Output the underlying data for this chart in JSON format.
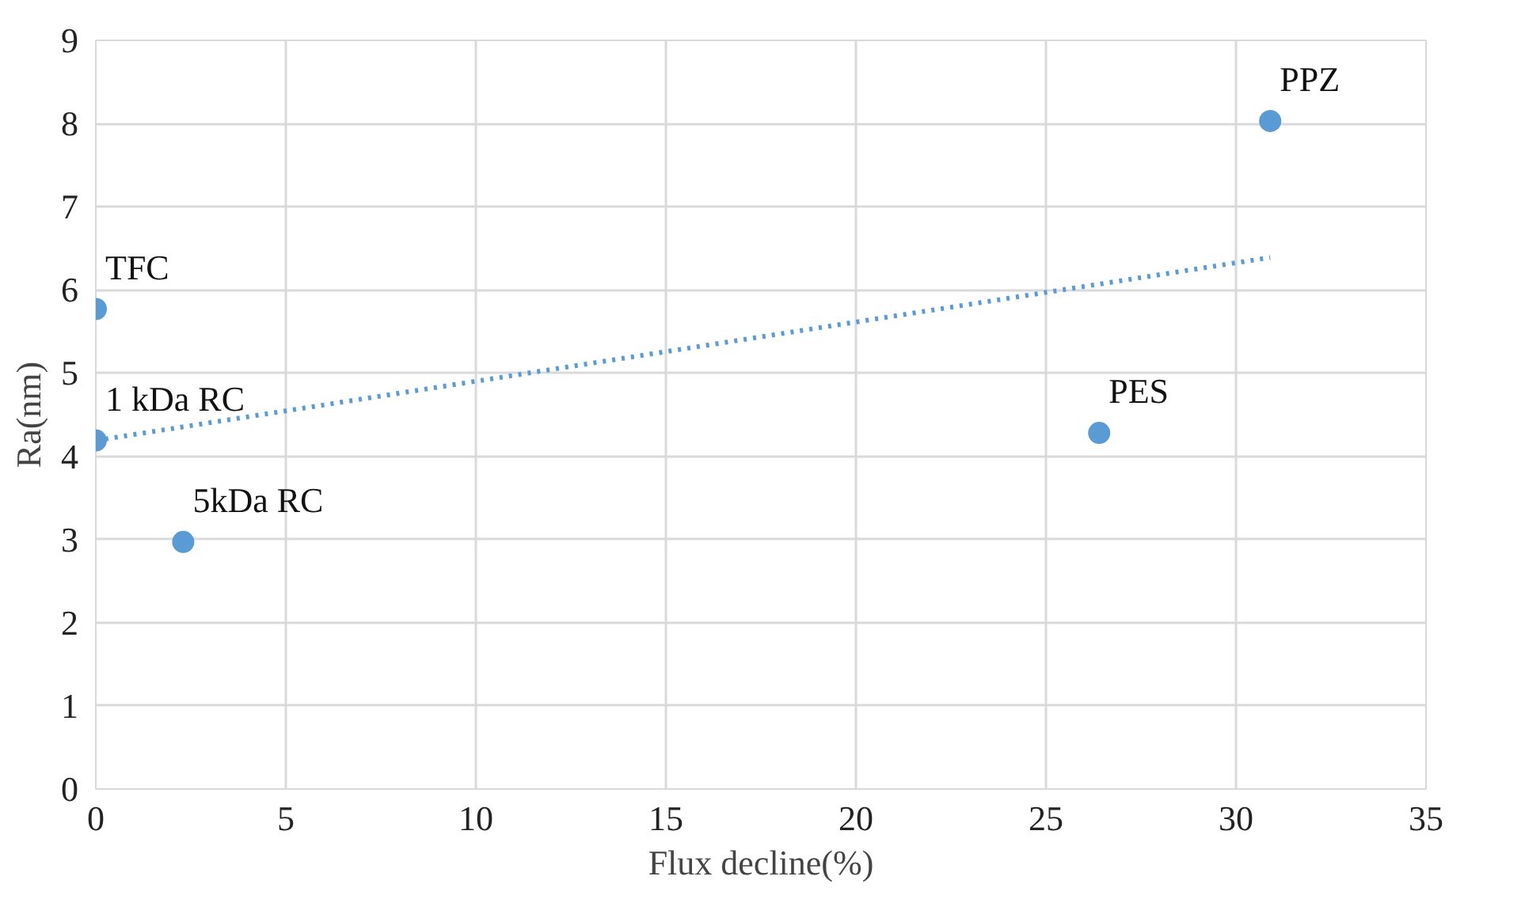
{
  "chart_data": {
    "type": "scatter",
    "xlabel": "Flux decline(%)",
    "ylabel": "Ra(nm)",
    "xlim": [
      0,
      35
    ],
    "xticks": [
      0,
      5,
      10,
      15,
      20,
      25,
      30,
      35
    ],
    "ylim": [
      0,
      9
    ],
    "yticks": [
      0,
      1,
      2,
      3,
      4,
      5,
      6,
      7,
      8,
      9
    ],
    "grid": true,
    "series": [
      {
        "marker": "circle",
        "color": "#5b9bd5",
        "x": [
          0,
          0,
          2.3,
          26.4,
          30.9
        ],
        "values": [
          5.77,
          4.19,
          2.97,
          4.28,
          8.03
        ]
      },
      {
        "type": "line",
        "marker": "none",
        "color": "#5b9bd5",
        "line_style": "dotted",
        "x": [
          0,
          30.9
        ],
        "values": [
          4.19,
          6.39
        ]
      }
    ],
    "annotations": [
      {
        "text": "TFC",
        "x": 0,
        "y": 5.77
      },
      {
        "text": "1 kDa RC",
        "x": 0,
        "y": 4.19
      },
      {
        "text": "5kDa RC",
        "x": 2.3,
        "y": 2.97
      },
      {
        "text": "PES",
        "x": 26.4,
        "y": 4.28
      },
      {
        "text": "PPZ",
        "x": 30.9,
        "y": 8.03
      }
    ]
  }
}
